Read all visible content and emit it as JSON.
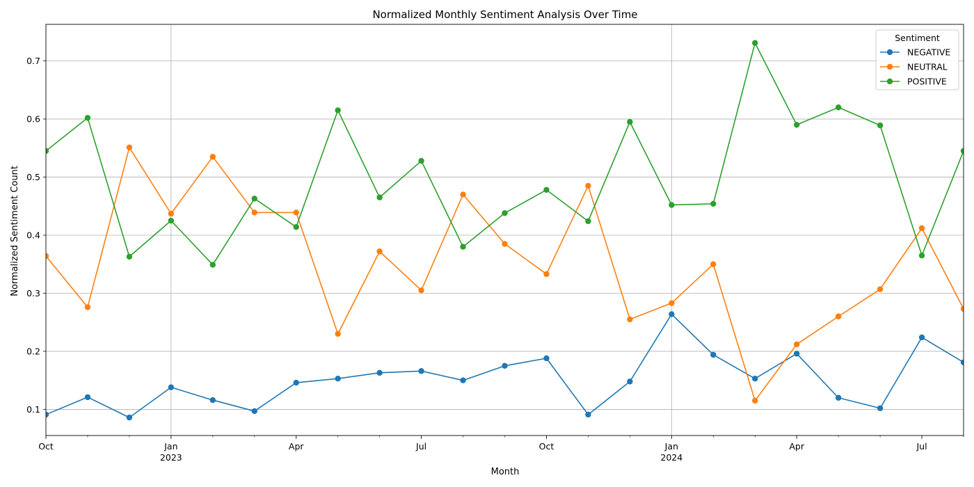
{
  "chart_data": {
    "type": "line",
    "title": "Normalized Monthly Sentiment Analysis Over Time",
    "xlabel": "Month",
    "ylabel": "Normalized Sentiment Count",
    "x": [
      "2022-10",
      "2022-11",
      "2022-12",
      "2023-01",
      "2023-02",
      "2023-03",
      "2023-04",
      "2023-05",
      "2023-06",
      "2023-07",
      "2023-08",
      "2023-09",
      "2023-10",
      "2023-11",
      "2023-12",
      "2024-01",
      "2024-02",
      "2024-03",
      "2024-04",
      "2024-05",
      "2024-06",
      "2024-07",
      "2024-08"
    ],
    "xlim": [
      "2022-10",
      "2024-08"
    ],
    "ylim": [
      0.055,
      0.763
    ],
    "yticks": [
      "0.1",
      "0.2",
      "0.3",
      "0.4",
      "0.5",
      "0.6",
      "0.7"
    ],
    "xticks": [
      {
        "label": "Oct",
        "sublabel": "",
        "x": "2022-10",
        "major": true
      },
      {
        "label": "Jan",
        "sublabel": "2023",
        "x": "2023-01",
        "major": true
      },
      {
        "label": "Apr",
        "sublabel": "",
        "x": "2023-04",
        "major": true
      },
      {
        "label": "Jul",
        "sublabel": "",
        "x": "2023-07",
        "major": true
      },
      {
        "label": "Oct",
        "sublabel": "",
        "x": "2023-10",
        "major": true
      },
      {
        "label": "Jan",
        "sublabel": "2024",
        "x": "2024-01",
        "major": true
      },
      {
        "label": "Apr",
        "sublabel": "",
        "x": "2024-04",
        "major": true
      },
      {
        "label": "Jul",
        "sublabel": "",
        "x": "2024-07",
        "major": true
      }
    ],
    "vertical_gridlines_at": [
      "2023-01",
      "2024-01"
    ],
    "grid": true,
    "legend": {
      "title": "Sentiment",
      "position": "top-right"
    },
    "series": [
      {
        "name": "NEGATIVE",
        "color": "#1f77b4",
        "values": [
          0.091,
          0.121,
          0.086,
          0.138,
          0.116,
          0.097,
          0.146,
          0.153,
          0.163,
          0.166,
          0.15,
          0.175,
          0.188,
          0.091,
          0.148,
          0.264,
          0.194,
          0.153,
          0.196,
          0.12,
          0.102,
          0.224,
          0.181
        ]
      },
      {
        "name": "NEUTRAL",
        "color": "#ff7f0e",
        "values": [
          0.364,
          0.276,
          0.551,
          0.437,
          0.535,
          0.439,
          0.439,
          0.23,
          0.372,
          0.305,
          0.47,
          0.385,
          0.333,
          0.485,
          0.255,
          0.283,
          0.35,
          0.115,
          0.212,
          0.26,
          0.307,
          0.412,
          0.273
        ]
      },
      {
        "name": "POSITIVE",
        "color": "#2ca02c",
        "values": [
          0.545,
          0.602,
          0.363,
          0.425,
          0.349,
          0.463,
          0.414,
          0.615,
          0.465,
          0.528,
          0.38,
          0.438,
          0.478,
          0.424,
          0.595,
          0.452,
          0.454,
          0.731,
          0.59,
          0.62,
          0.589,
          0.365,
          0.545
        ]
      }
    ]
  }
}
